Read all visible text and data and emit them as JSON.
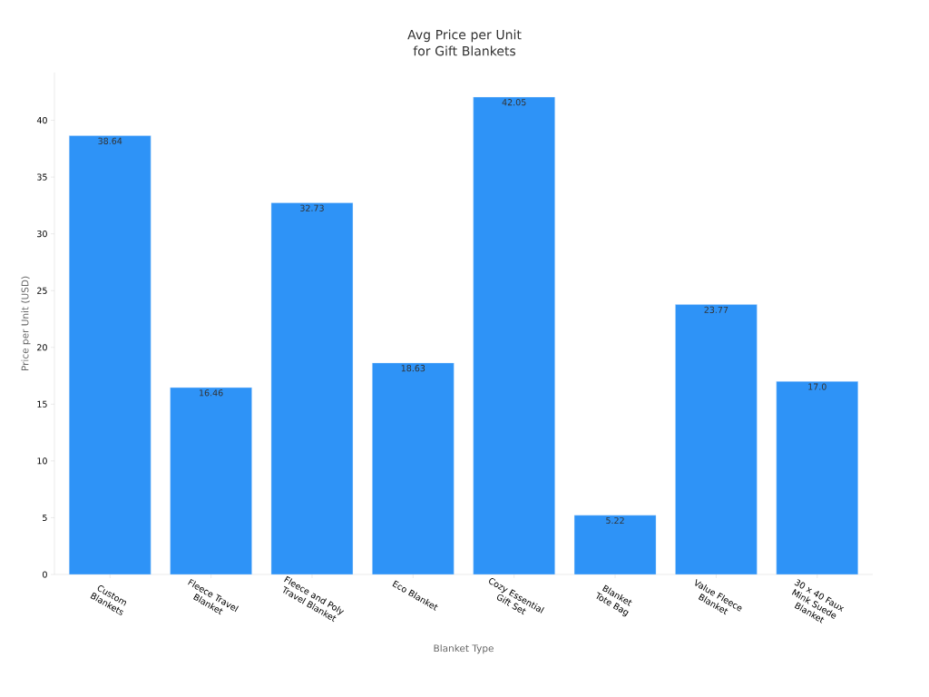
{
  "chart_data": {
    "type": "bar",
    "title": "Avg Price per Unit for Gift Blankets",
    "xlabel": "Blanket Type",
    "ylabel": "Price per Unit (USD)",
    "categories": [
      "Custom Blankets",
      "Fleece Travel Blanket",
      "Fleece and Poly Travel Blanket",
      "Eco Blanket",
      "Cozy Essential Gift Set",
      "Blanket Tote Bag",
      "Value Fleece Blanket",
      "30 x 40 Faux Mink Suede Blanket"
    ],
    "values": [
      38.64,
      16.46,
      32.73,
      18.63,
      42.05,
      5.22,
      23.77,
      17.0
    ],
    "value_labels": [
      "38.64",
      "16.46",
      "32.73",
      "18.63",
      "42.05",
      "5.22",
      "23.77",
      "17.0"
    ],
    "color": "#2e93f7",
    "ylim": [
      0,
      44.2
    ],
    "yticks": [
      0,
      5,
      10,
      15,
      20,
      25,
      30,
      35,
      40
    ],
    "grid": false
  }
}
